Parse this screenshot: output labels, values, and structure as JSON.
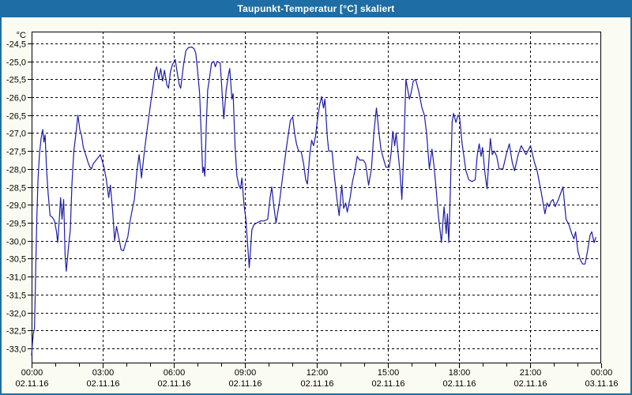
{
  "window": {
    "title": "Taupunkt-Temperatur [°C] skaliert",
    "title_bg": "#1E6DA4",
    "border_color": "#1E6DA4",
    "content_bg": "#FBFCF1",
    "plot_bg": "#FFFFFF",
    "line_color": "#1C1CA8"
  },
  "chart_data": {
    "type": "line",
    "title": "Taupunkt-Temperatur [°C] skaliert",
    "ylabel": "°C",
    "grid": true,
    "legend_position": "none",
    "ylim": [
      -33.42,
      -24.17
    ],
    "xlim_hours": [
      0,
      24
    ],
    "y_ticks": [
      -24.5,
      -25.0,
      -25.5,
      -26.0,
      -26.5,
      -27.0,
      -27.5,
      -28.0,
      -28.5,
      -29.0,
      -29.5,
      -30.0,
      -30.5,
      -31.0,
      -31.5,
      -32.0,
      -32.5,
      -33.0
    ],
    "y_tick_labels": [
      "-24,5",
      "-25,0",
      "-25,5",
      "-26,0",
      "-26,5",
      "-27,0",
      "-27,5",
      "-28,0",
      "-28,5",
      "-29,0",
      "-29,5",
      "-30,0",
      "-30,5",
      "-31,0",
      "-31,5",
      "-32,0",
      "-32,5",
      "-33,0"
    ],
    "x_major_ticks_hours": [
      0,
      3,
      6,
      9,
      12,
      15,
      18,
      21,
      24
    ],
    "x_minor_tick_interval_hours": 1,
    "x_tick_labels": [
      {
        "time": "00:00",
        "date": "02.11.16"
      },
      {
        "time": "03:00",
        "date": "02.11.16"
      },
      {
        "time": "06:00",
        "date": "02.11.16"
      },
      {
        "time": "09:00",
        "date": "02.11.16"
      },
      {
        "time": "12:00",
        "date": "02.11.16"
      },
      {
        "time": "15:00",
        "date": "02.11.16"
      },
      {
        "time": "18:00",
        "date": "02.11.16"
      },
      {
        "time": "21:00",
        "date": "02.11.16"
      },
      {
        "time": "00:00",
        "date": "03.11.16"
      }
    ],
    "series": [
      {
        "name": "Taupunkt-Temperatur",
        "points": [
          [
            0.0,
            -33.2
          ],
          [
            0.03,
            -32.9
          ],
          [
            0.07,
            -32.6
          ],
          [
            0.12,
            -32.45
          ],
          [
            0.15,
            -31.6
          ],
          [
            0.18,
            -30.6
          ],
          [
            0.22,
            -29.4
          ],
          [
            0.27,
            -28.3
          ],
          [
            0.33,
            -27.6
          ],
          [
            0.4,
            -27.15
          ],
          [
            0.47,
            -26.9
          ],
          [
            0.52,
            -27.25
          ],
          [
            0.57,
            -27.05
          ],
          [
            0.63,
            -28.0
          ],
          [
            0.7,
            -28.7
          ],
          [
            0.78,
            -29.3
          ],
          [
            0.88,
            -29.35
          ],
          [
            0.97,
            -29.45
          ],
          [
            1.05,
            -29.75
          ],
          [
            1.1,
            -30.05
          ],
          [
            1.17,
            -29.4
          ],
          [
            1.22,
            -28.8
          ],
          [
            1.28,
            -29.4
          ],
          [
            1.35,
            -28.85
          ],
          [
            1.41,
            -30.4
          ],
          [
            1.46,
            -30.85
          ],
          [
            1.55,
            -30.2
          ],
          [
            1.63,
            -29.7
          ],
          [
            1.7,
            -28.4
          ],
          [
            1.78,
            -27.5
          ],
          [
            1.87,
            -27.0
          ],
          [
            1.95,
            -26.5
          ],
          [
            2.03,
            -26.9
          ],
          [
            2.1,
            -27.05
          ],
          [
            2.18,
            -27.4
          ],
          [
            2.28,
            -27.6
          ],
          [
            2.37,
            -27.8
          ],
          [
            2.46,
            -27.95
          ],
          [
            2.52,
            -28.0
          ],
          [
            2.6,
            -27.85
          ],
          [
            2.72,
            -27.75
          ],
          [
            2.9,
            -27.6
          ],
          [
            3.05,
            -27.95
          ],
          [
            3.15,
            -28.3
          ],
          [
            3.25,
            -28.8
          ],
          [
            3.32,
            -28.45
          ],
          [
            3.42,
            -29.2
          ],
          [
            3.5,
            -30.0
          ],
          [
            3.58,
            -29.6
          ],
          [
            3.68,
            -29.95
          ],
          [
            3.77,
            -30.25
          ],
          [
            3.87,
            -30.28
          ],
          [
            3.97,
            -30.05
          ],
          [
            4.05,
            -29.9
          ],
          [
            4.15,
            -29.45
          ],
          [
            4.25,
            -29.1
          ],
          [
            4.33,
            -28.85
          ],
          [
            4.44,
            -28.05
          ],
          [
            4.53,
            -27.6
          ],
          [
            4.63,
            -28.25
          ],
          [
            4.72,
            -27.7
          ],
          [
            4.82,
            -27.15
          ],
          [
            4.92,
            -26.65
          ],
          [
            5.02,
            -26.15
          ],
          [
            5.12,
            -25.7
          ],
          [
            5.2,
            -25.3
          ],
          [
            5.27,
            -25.15
          ],
          [
            5.36,
            -25.5
          ],
          [
            5.44,
            -25.2
          ],
          [
            5.52,
            -25.55
          ],
          [
            5.6,
            -25.25
          ],
          [
            5.7,
            -25.65
          ],
          [
            5.77,
            -25.75
          ],
          [
            5.85,
            -25.3
          ],
          [
            5.93,
            -25.1
          ],
          [
            6.05,
            -24.95
          ],
          [
            6.13,
            -25.3
          ],
          [
            6.22,
            -25.65
          ],
          [
            6.28,
            -25.75
          ],
          [
            6.4,
            -25.1
          ],
          [
            6.5,
            -24.7
          ],
          [
            6.6,
            -24.62
          ],
          [
            6.75,
            -24.6
          ],
          [
            6.85,
            -24.65
          ],
          [
            6.92,
            -24.78
          ],
          [
            7.0,
            -25.3
          ],
          [
            7.08,
            -25.9
          ],
          [
            7.15,
            -27.1
          ],
          [
            7.21,
            -28.1
          ],
          [
            7.25,
            -27.95
          ],
          [
            7.3,
            -28.2
          ],
          [
            7.36,
            -26.8
          ],
          [
            7.42,
            -25.8
          ],
          [
            7.5,
            -25.45
          ],
          [
            7.58,
            -25.05
          ],
          [
            7.68,
            -25.0
          ],
          [
            7.74,
            -25.15
          ],
          [
            7.82,
            -25.0
          ],
          [
            7.95,
            -25.05
          ],
          [
            8.03,
            -25.9
          ],
          [
            8.1,
            -26.6
          ],
          [
            8.2,
            -25.8
          ],
          [
            8.3,
            -25.35
          ],
          [
            8.35,
            -25.2
          ],
          [
            8.44,
            -26.05
          ],
          [
            8.49,
            -25.9
          ],
          [
            8.57,
            -27.35
          ],
          [
            8.65,
            -28.2
          ],
          [
            8.73,
            -28.45
          ],
          [
            8.8,
            -28.55
          ],
          [
            8.86,
            -28.25
          ],
          [
            8.95,
            -29.0
          ],
          [
            9.02,
            -29.35
          ],
          [
            9.09,
            -30.0
          ],
          [
            9.17,
            -30.75
          ],
          [
            9.23,
            -30.2
          ],
          [
            9.28,
            -29.7
          ],
          [
            9.37,
            -29.55
          ],
          [
            9.5,
            -29.5
          ],
          [
            9.65,
            -29.45
          ],
          [
            9.8,
            -29.45
          ],
          [
            9.95,
            -29.4
          ],
          [
            10.05,
            -28.8
          ],
          [
            10.12,
            -28.5
          ],
          [
            10.2,
            -29.0
          ],
          [
            10.3,
            -29.5
          ],
          [
            10.45,
            -28.9
          ],
          [
            10.6,
            -28.1
          ],
          [
            10.75,
            -27.35
          ],
          [
            10.9,
            -26.65
          ],
          [
            11.0,
            -26.55
          ],
          [
            11.08,
            -27.0
          ],
          [
            11.16,
            -27.3
          ],
          [
            11.25,
            -27.5
          ],
          [
            11.36,
            -27.52
          ],
          [
            11.46,
            -27.85
          ],
          [
            11.55,
            -28.3
          ],
          [
            11.62,
            -28.42
          ],
          [
            11.72,
            -27.6
          ],
          [
            11.8,
            -27.2
          ],
          [
            11.88,
            -27.35
          ],
          [
            11.96,
            -27.1
          ],
          [
            12.05,
            -26.6
          ],
          [
            12.14,
            -26.2
          ],
          [
            12.22,
            -25.98
          ],
          [
            12.3,
            -26.3
          ],
          [
            12.36,
            -26.05
          ],
          [
            12.46,
            -27.1
          ],
          [
            12.52,
            -27.5
          ],
          [
            12.66,
            -27.5
          ],
          [
            12.76,
            -28.2
          ],
          [
            12.86,
            -28.8
          ],
          [
            12.96,
            -29.3
          ],
          [
            13.07,
            -28.45
          ],
          [
            13.15,
            -29.1
          ],
          [
            13.23,
            -28.95
          ],
          [
            13.3,
            -29.2
          ],
          [
            13.42,
            -28.8
          ],
          [
            13.52,
            -28.35
          ],
          [
            13.62,
            -28.05
          ],
          [
            13.72,
            -27.65
          ],
          [
            13.82,
            -27.75
          ],
          [
            13.97,
            -27.75
          ],
          [
            14.07,
            -27.85
          ],
          [
            14.2,
            -28.45
          ],
          [
            14.32,
            -28.0
          ],
          [
            14.42,
            -27.0
          ],
          [
            14.53,
            -26.3
          ],
          [
            14.64,
            -27.0
          ],
          [
            14.72,
            -27.45
          ],
          [
            14.82,
            -27.7
          ],
          [
            14.93,
            -27.95
          ],
          [
            15.07,
            -27.95
          ],
          [
            15.15,
            -27.55
          ],
          [
            15.22,
            -26.95
          ],
          [
            15.3,
            -27.35
          ],
          [
            15.36,
            -27.0
          ],
          [
            15.45,
            -27.6
          ],
          [
            15.52,
            -28.05
          ],
          [
            15.6,
            -28.85
          ],
          [
            15.68,
            -27.5
          ],
          [
            15.77,
            -25.5
          ],
          [
            15.85,
            -25.8
          ],
          [
            15.92,
            -26.05
          ],
          [
            16.0,
            -25.85
          ],
          [
            16.08,
            -25.55
          ],
          [
            16.18,
            -25.5
          ],
          [
            16.3,
            -25.8
          ],
          [
            16.45,
            -26.3
          ],
          [
            16.55,
            -26.5
          ],
          [
            16.65,
            -27.05
          ],
          [
            16.76,
            -28.0
          ],
          [
            16.87,
            -27.45
          ],
          [
            16.97,
            -28.0
          ],
          [
            17.05,
            -28.6
          ],
          [
            17.14,
            -29.3
          ],
          [
            17.27,
            -30.05
          ],
          [
            17.38,
            -29.05
          ],
          [
            17.47,
            -29.8
          ],
          [
            17.52,
            -29.25
          ],
          [
            17.58,
            -30.05
          ],
          [
            17.65,
            -28.5
          ],
          [
            17.72,
            -26.7
          ],
          [
            17.78,
            -26.45
          ],
          [
            17.88,
            -26.7
          ],
          [
            17.97,
            -26.5
          ],
          [
            18.03,
            -26.55
          ],
          [
            18.14,
            -27.3
          ],
          [
            18.3,
            -28.05
          ],
          [
            18.42,
            -28.3
          ],
          [
            18.56,
            -28.35
          ],
          [
            18.69,
            -28.3
          ],
          [
            18.78,
            -27.6
          ],
          [
            18.86,
            -27.3
          ],
          [
            18.94,
            -27.65
          ],
          [
            19.0,
            -27.4
          ],
          [
            19.1,
            -28.1
          ],
          [
            19.19,
            -28.55
          ],
          [
            19.33,
            -27.15
          ],
          [
            19.41,
            -27.6
          ],
          [
            19.5,
            -27.5
          ],
          [
            19.6,
            -27.65
          ],
          [
            19.7,
            -28.0
          ],
          [
            19.86,
            -28.0
          ],
          [
            20.0,
            -27.6
          ],
          [
            20.13,
            -27.3
          ],
          [
            20.25,
            -27.8
          ],
          [
            20.35,
            -28.05
          ],
          [
            20.5,
            -27.6
          ],
          [
            20.63,
            -27.35
          ],
          [
            20.83,
            -27.6
          ],
          [
            21.02,
            -27.35
          ],
          [
            21.18,
            -27.8
          ],
          [
            21.3,
            -28.05
          ],
          [
            21.46,
            -28.6
          ],
          [
            21.63,
            -29.25
          ],
          [
            21.72,
            -28.95
          ],
          [
            21.8,
            -29.05
          ],
          [
            21.89,
            -28.9
          ],
          [
            21.97,
            -28.85
          ],
          [
            22.06,
            -29.05
          ],
          [
            22.2,
            -28.85
          ],
          [
            22.39,
            -28.5
          ],
          [
            22.52,
            -29.4
          ],
          [
            22.64,
            -29.55
          ],
          [
            22.76,
            -29.8
          ],
          [
            22.85,
            -29.95
          ],
          [
            22.92,
            -29.75
          ],
          [
            23.02,
            -30.3
          ],
          [
            23.13,
            -30.55
          ],
          [
            23.22,
            -30.65
          ],
          [
            23.32,
            -30.65
          ],
          [
            23.42,
            -30.3
          ],
          [
            23.53,
            -29.85
          ],
          [
            23.6,
            -29.75
          ],
          [
            23.7,
            -30.05
          ],
          [
            23.78,
            -29.9
          ]
        ]
      }
    ]
  }
}
